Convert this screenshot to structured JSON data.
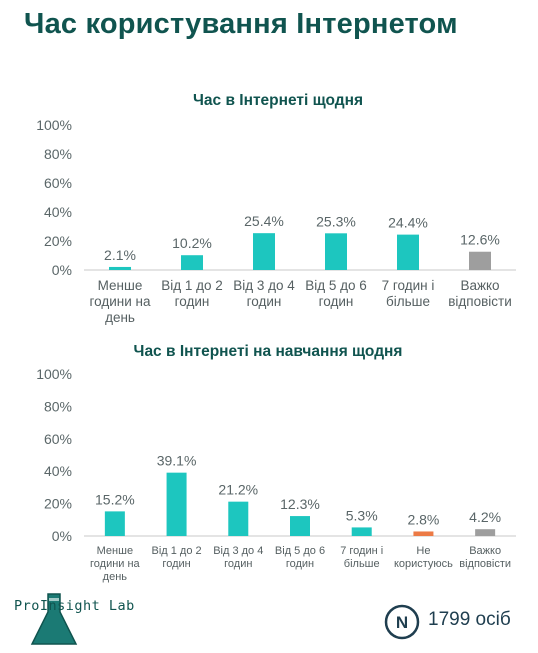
{
  "title": "Час користування Інтернетом",
  "colors": {
    "teal": "#1dc6bf",
    "gray": "#9e9e9e",
    "orange": "#ec7a45",
    "dark_teal": "#10544f",
    "navy": "#1f3e4f"
  },
  "chart_data": [
    {
      "type": "bar",
      "title": "Час в Інтернеті щодня",
      "ylim": [
        0,
        100
      ],
      "yticks": [
        "0%",
        "20%",
        "40%",
        "60%",
        "80%",
        "100%"
      ],
      "categories": [
        [
          "Менше",
          "години на",
          "день"
        ],
        [
          "Від 1 до 2",
          "годин"
        ],
        [
          "Від 3 до 4",
          "годин"
        ],
        [
          "Від 5 до 6",
          "годин"
        ],
        [
          "7 годин і",
          "більше"
        ],
        [
          "Важко",
          "відповісти"
        ]
      ],
      "values": [
        2.1,
        10.2,
        25.4,
        25.3,
        24.4,
        12.6
      ],
      "labels": [
        "2.1%",
        "10.2%",
        "25.4%",
        "25.3%",
        "24.4%",
        "12.6%"
      ],
      "bar_colors": [
        "#1dc6bf",
        "#1dc6bf",
        "#1dc6bf",
        "#1dc6bf",
        "#1dc6bf",
        "#9e9e9e"
      ]
    },
    {
      "type": "bar",
      "title": "Час в Інтернеті на навчання щодня",
      "ylim": [
        0,
        100
      ],
      "yticks": [
        "0%",
        "20%",
        "40%",
        "60%",
        "80%",
        "100%"
      ],
      "categories": [
        [
          "Менше",
          "години на",
          "день"
        ],
        [
          "Від 1 до 2",
          "годин"
        ],
        [
          "Від 3 до 4",
          "годин"
        ],
        [
          "Від 5 до 6",
          "годин"
        ],
        [
          "7 годин і",
          "більше"
        ],
        [
          "Не",
          "користуюсь"
        ],
        [
          "Важко",
          "відповісти"
        ]
      ],
      "values": [
        15.2,
        39.1,
        21.2,
        12.3,
        5.3,
        2.8,
        4.2
      ],
      "labels": [
        "15.2%",
        "39.1%",
        "21.2%",
        "12.3%",
        "5.3%",
        "2.8%",
        "4.2%"
      ],
      "bar_colors": [
        "#1dc6bf",
        "#1dc6bf",
        "#1dc6bf",
        "#1dc6bf",
        "#1dc6bf",
        "#ec7a45",
        "#9e9e9e"
      ]
    }
  ],
  "logo": {
    "prefix": "Pro",
    "letter": "I",
    "suffix": "nsight Lab",
    "icon": "flask-icon"
  },
  "sample": {
    "badge": "N",
    "count": "1799 осіб"
  }
}
